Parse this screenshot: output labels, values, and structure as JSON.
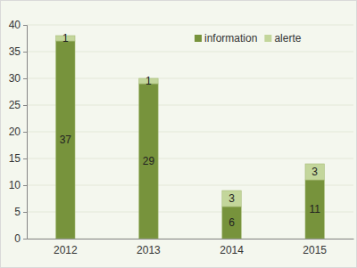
{
  "chart_data": {
    "type": "bar",
    "stacked": true,
    "data_labels": true,
    "grid": true,
    "legend": "upper right",
    "categories": [
      "2012",
      "2013",
      "2014",
      "2015"
    ],
    "series": [
      {
        "name": "information",
        "color": "#77933c",
        "values": [
          37,
          29,
          6,
          11
        ]
      },
      {
        "name": "alerte",
        "color": "#c3d69b",
        "values": [
          1,
          1,
          3,
          3
        ]
      }
    ],
    "ylim": [
      0,
      40
    ],
    "yticks": [
      0,
      5,
      10,
      15,
      20,
      25,
      30,
      35,
      40
    ]
  }
}
